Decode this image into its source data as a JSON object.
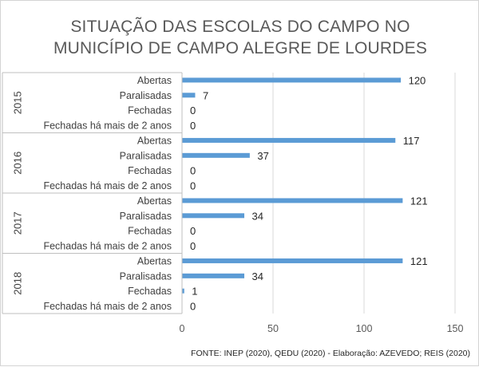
{
  "chart_data": {
    "type": "bar",
    "orientation": "horizontal",
    "title_lines": [
      "SITUAÇÃO DAS ESCOLAS DO CAMPO NO",
      "MUNICÍPIO DE CAMPO ALEGRE DE LOURDES"
    ],
    "groups": [
      {
        "year": "2015",
        "items": [
          {
            "label": "Abertas",
            "value": 120
          },
          {
            "label": "Paralisadas",
            "value": 7
          },
          {
            "label": "Fechadas",
            "value": 0
          },
          {
            "label": "Fechadas há mais de 2 anos",
            "value": 0
          }
        ]
      },
      {
        "year": "2016",
        "items": [
          {
            "label": "Abertas",
            "value": 117
          },
          {
            "label": "Paralisadas",
            "value": 37
          },
          {
            "label": "Fechadas",
            "value": 0
          },
          {
            "label": "Fechadas há mais de 2 anos",
            "value": 0
          }
        ]
      },
      {
        "year": "2017",
        "items": [
          {
            "label": "Abertas",
            "value": 121
          },
          {
            "label": "Paralisadas",
            "value": 34
          },
          {
            "label": "Fechadas",
            "value": 0
          },
          {
            "label": "Fechadas há mais de 2 anos",
            "value": 0
          }
        ]
      },
      {
        "year": "2018",
        "items": [
          {
            "label": "Abertas",
            "value": 121
          },
          {
            "label": "Paralisadas",
            "value": 34
          },
          {
            "label": "Fechadas",
            "value": 1
          },
          {
            "label": "Fechadas há mais de 2 anos",
            "value": 0
          }
        ]
      }
    ],
    "x_ticks": [
      0,
      50,
      100,
      150
    ],
    "xlim": [
      0,
      150
    ],
    "grid": "vertical gridlines",
    "legend": "none",
    "bar_color": "#5b9bd5",
    "source": "FONTE: INEP (2020),  QEDU (2020)  - Elaboração: AZEVEDO; REIS (2020)"
  }
}
